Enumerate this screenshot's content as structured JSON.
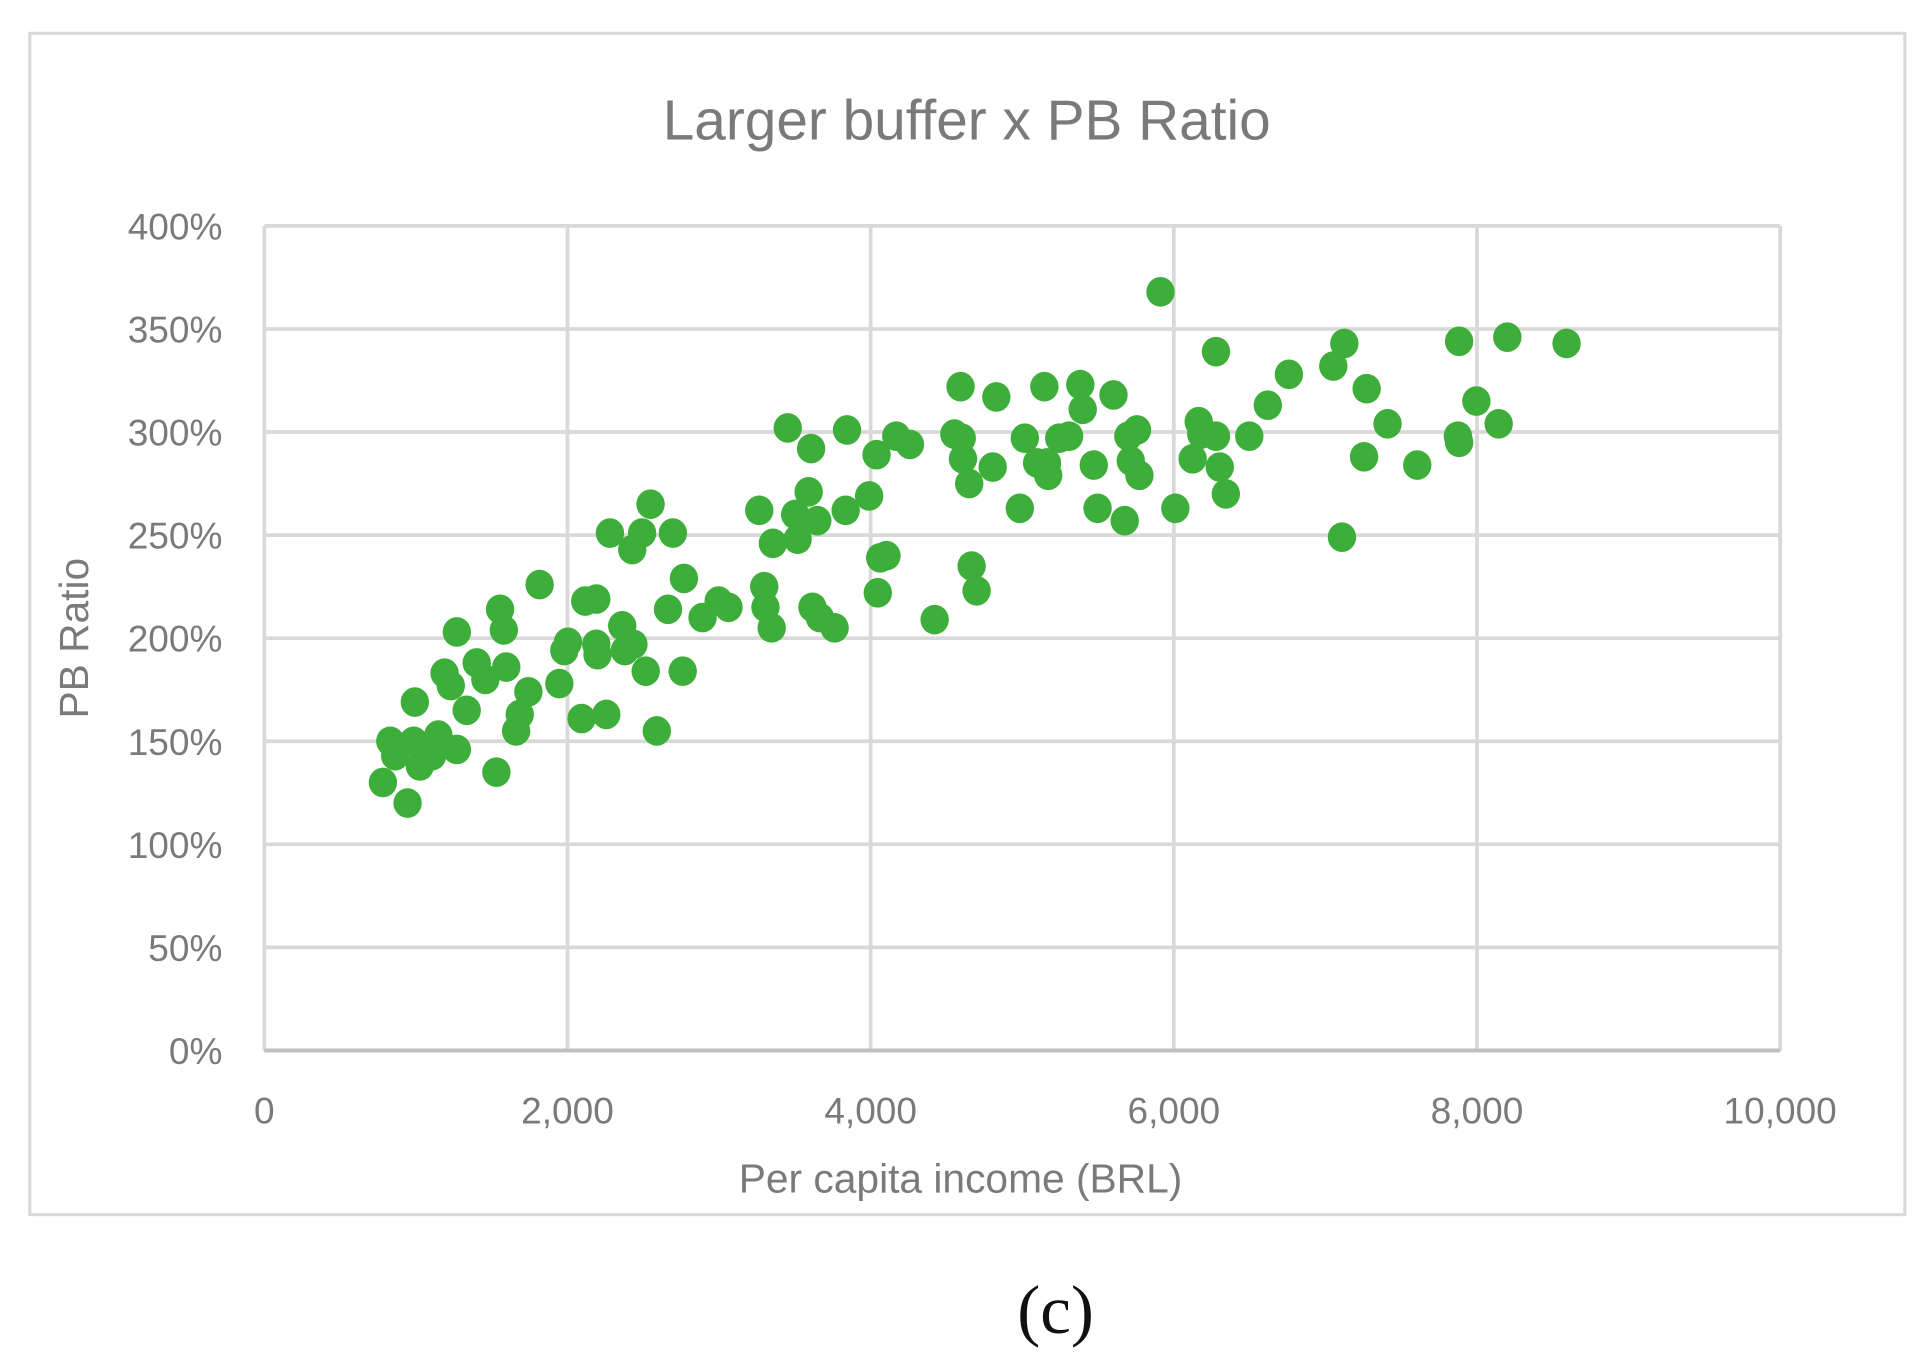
{
  "chart_data": {
    "type": "scatter",
    "title": "Larger buffer x PB Ratio",
    "xlabel": "Per capita income (BRL)",
    "ylabel": "PB Ratio",
    "xlim": [
      0,
      10000
    ],
    "ylim": [
      0,
      400
    ],
    "xticks": [
      0,
      2000,
      4000,
      6000,
      8000,
      10000
    ],
    "xtick_labels": [
      "0",
      "2,000",
      "4,000",
      "6,000",
      "8,000",
      "10,000"
    ],
    "yticks": [
      0,
      50,
      100,
      150,
      200,
      250,
      300,
      350,
      400
    ],
    "ytick_labels": [
      "0%",
      "50%",
      "100%",
      "150%",
      "200%",
      "250%",
      "300%",
      "350%",
      "400%"
    ],
    "grid": true,
    "legend": "none",
    "marker_color": "#3dae3a",
    "series": [
      {
        "name": "PB Ratio",
        "x": [
          782,
          831,
          863,
          945,
          993,
          985,
          1026,
          1107,
          1148,
          1189,
          1230,
          1270,
          1270,
          1335,
          1401,
          1458,
          1531,
          1555,
          1580,
          1596,
          1661,
          1685,
          1742,
          1816,
          1946,
          1979,
          2003,
          2093,
          2117,
          2190,
          2190,
          2198,
          2256,
          2280,
          2361,
          2378,
          2427,
          2435,
          2492,
          2516,
          2548,
          2589,
          2663,
          2695,
          2760,
          2768,
          2891,
          2997,
          3062,
          3265,
          3298,
          3306,
          3347,
          3355,
          3453,
          3502,
          3518,
          3591,
          3607,
          3616,
          3648,
          3665,
          3762,
          3835,
          3844,
          3990,
          4039,
          4047,
          4063,
          4104,
          4169,
          4259,
          4422,
          4552,
          4593,
          4601,
          4609,
          4650,
          4666,
          4699,
          4805,
          4829,
          4984,
          5017,
          5098,
          5146,
          5163,
          5171,
          5244,
          5309,
          5383,
          5399,
          5472,
          5497,
          5602,
          5676,
          5700,
          5716,
          5757,
          5773,
          5912,
          6010,
          6124,
          6164,
          6181,
          6278,
          6278,
          6303,
          6343,
          6498,
          6620,
          6759,
          7052,
          7125,
          7109,
          7255,
          7272,
          7410,
          7606,
          7874,
          7882,
          7882,
          7996,
          8143,
          8200,
          8591
        ],
        "y": [
          130,
          150,
          143,
          120,
          169,
          150,
          138,
          143,
          153,
          183,
          177,
          203,
          146,
          165,
          188,
          180,
          135,
          214,
          204,
          186,
          155,
          163,
          174,
          226,
          178,
          194,
          198,
          161,
          218,
          219,
          197,
          192,
          163,
          251,
          206,
          194,
          243,
          197,
          251,
          184,
          265,
          155,
          214,
          251,
          184,
          229,
          210,
          218,
          215,
          262,
          225,
          215,
          205,
          246,
          302,
          260,
          248,
          271,
          292,
          215,
          257,
          210,
          205,
          262,
          301,
          269,
          289,
          222,
          239,
          240,
          298,
          294,
          209,
          299,
          322,
          297,
          287,
          275,
          235,
          223,
          283,
          317,
          263,
          297,
          285,
          322,
          285,
          279,
          297,
          298,
          323,
          311,
          284,
          263,
          318,
          257,
          298,
          286,
          301,
          279,
          368,
          263,
          287,
          305,
          299,
          339,
          298,
          283,
          270,
          298,
          313,
          328,
          332,
          343,
          249,
          288,
          321,
          304,
          284,
          298,
          344,
          295,
          315,
          304,
          346,
          343
        ]
      }
    ]
  },
  "caption": "(c)"
}
